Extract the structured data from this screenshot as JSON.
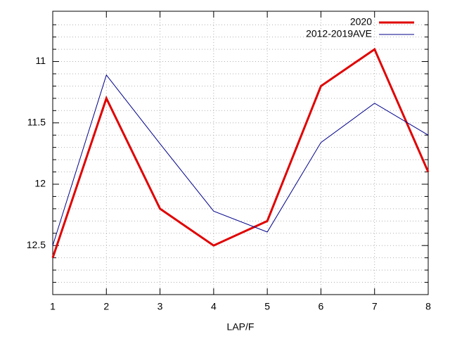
{
  "chart_data": {
    "type": "line",
    "xlabel": "LAP/F",
    "x": [
      1,
      2,
      3,
      4,
      5,
      6,
      7,
      8
    ],
    "series": [
      {
        "name": "2020",
        "color": "#e00000",
        "width": 3,
        "values": [
          12.6,
          11.3,
          12.2,
          12.5,
          12.3,
          11.2,
          10.9,
          11.9
        ]
      },
      {
        "name": "2012-2019AVE",
        "color": "#00008b",
        "width": 1,
        "values": [
          12.5,
          11.11,
          11.67,
          12.22,
          12.39,
          11.66,
          11.34,
          11.6
        ]
      }
    ],
    "xlim": [
      1,
      8
    ],
    "xticks": [
      1,
      2,
      3,
      4,
      5,
      6,
      7,
      8
    ],
    "ylim": [
      10.59,
      12.9
    ],
    "y_reversed": true,
    "yticks": [
      11,
      11.5,
      12,
      12.5
    ],
    "yminorticks": [
      10.7,
      10.8,
      10.9,
      11.1,
      11.2,
      11.3,
      11.4,
      11.6,
      11.7,
      11.8,
      11.9,
      12.1,
      12.2,
      12.3,
      12.4,
      12.6,
      12.7,
      12.8
    ],
    "grid": true,
    "legend": "top-right"
  }
}
